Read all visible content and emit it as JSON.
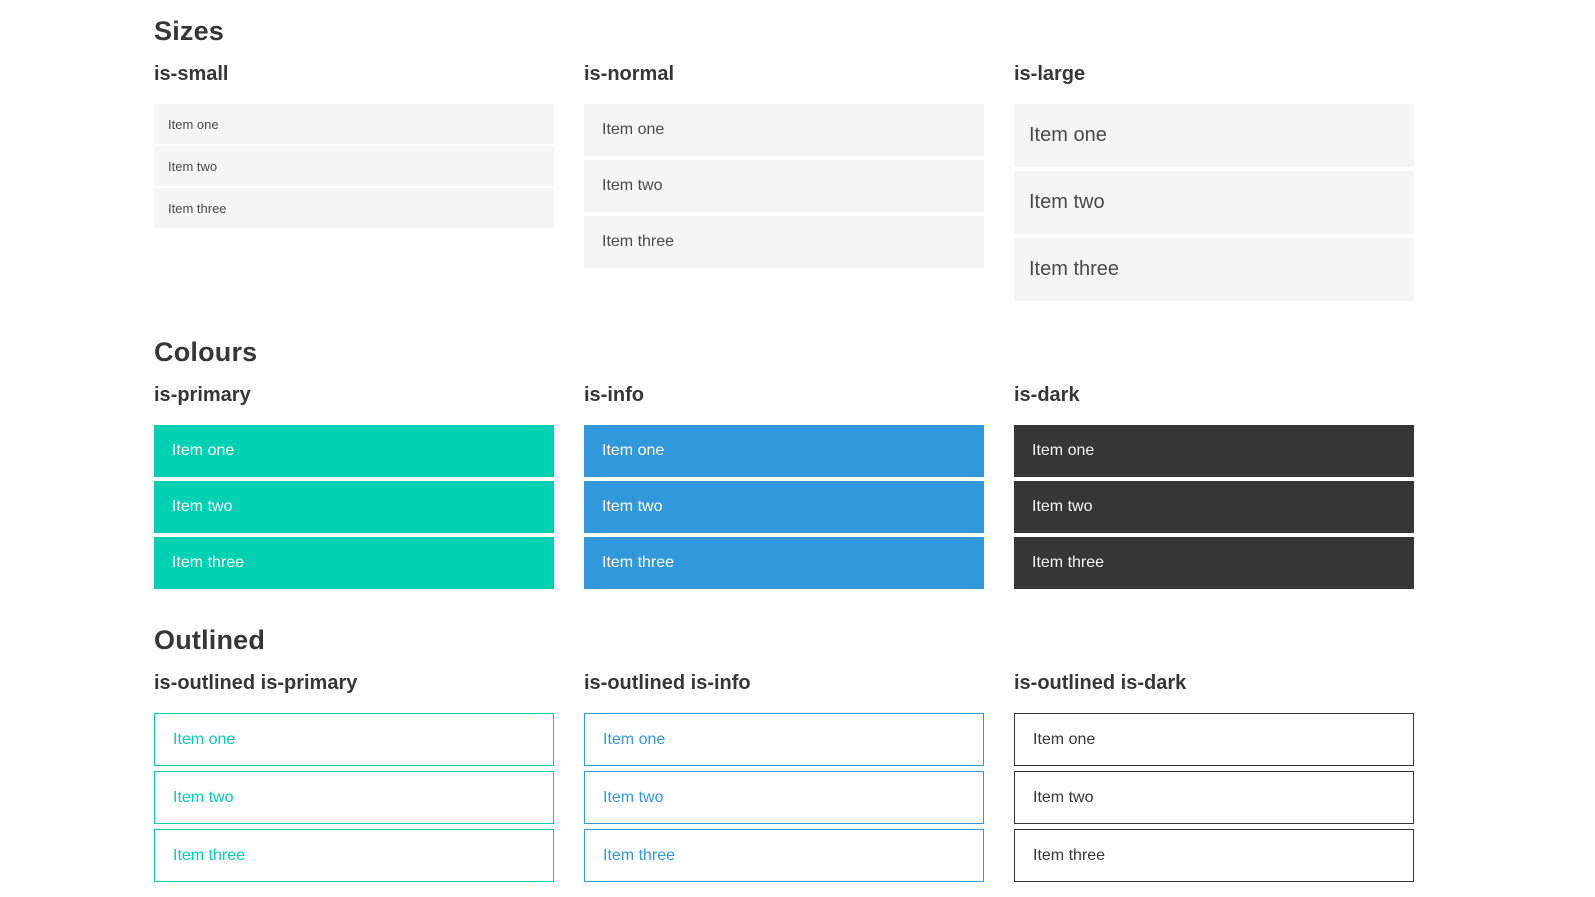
{
  "colors": {
    "primary": "#00d1b2",
    "info": "#3298dc",
    "dark": "#363636",
    "item_background": "#f5f5f5",
    "item_text": "#4a4a4a",
    "heading_text": "#363636",
    "light_text": "#ffffff",
    "page_background": "#ffffff"
  },
  "sections": [
    {
      "title": "Sizes",
      "groups": [
        {
          "label": "is-small",
          "items": [
            "Item one",
            "Item two",
            "Item three"
          ]
        },
        {
          "label": "is-normal",
          "items": [
            "Item one",
            "Item two",
            "Item three"
          ]
        },
        {
          "label": "is-large",
          "items": [
            "Item one",
            "Item two",
            "Item three"
          ]
        }
      ]
    },
    {
      "title": "Colours",
      "groups": [
        {
          "label": "is-primary",
          "items": [
            "Item one",
            "Item two",
            "Item three"
          ]
        },
        {
          "label": "is-info",
          "items": [
            "Item one",
            "Item two",
            "Item three"
          ]
        },
        {
          "label": "is-dark",
          "items": [
            "Item one",
            "Item two",
            "Item three"
          ]
        }
      ]
    },
    {
      "title": "Outlined",
      "groups": [
        {
          "label": "is-outlined is-primary",
          "items": [
            "Item one",
            "Item two",
            "Item three"
          ]
        },
        {
          "label": "is-outlined is-info",
          "items": [
            "Item one",
            "Item two",
            "Item three"
          ]
        },
        {
          "label": "is-outlined is-dark",
          "items": [
            "Item one",
            "Item two",
            "Item three"
          ]
        }
      ]
    }
  ]
}
